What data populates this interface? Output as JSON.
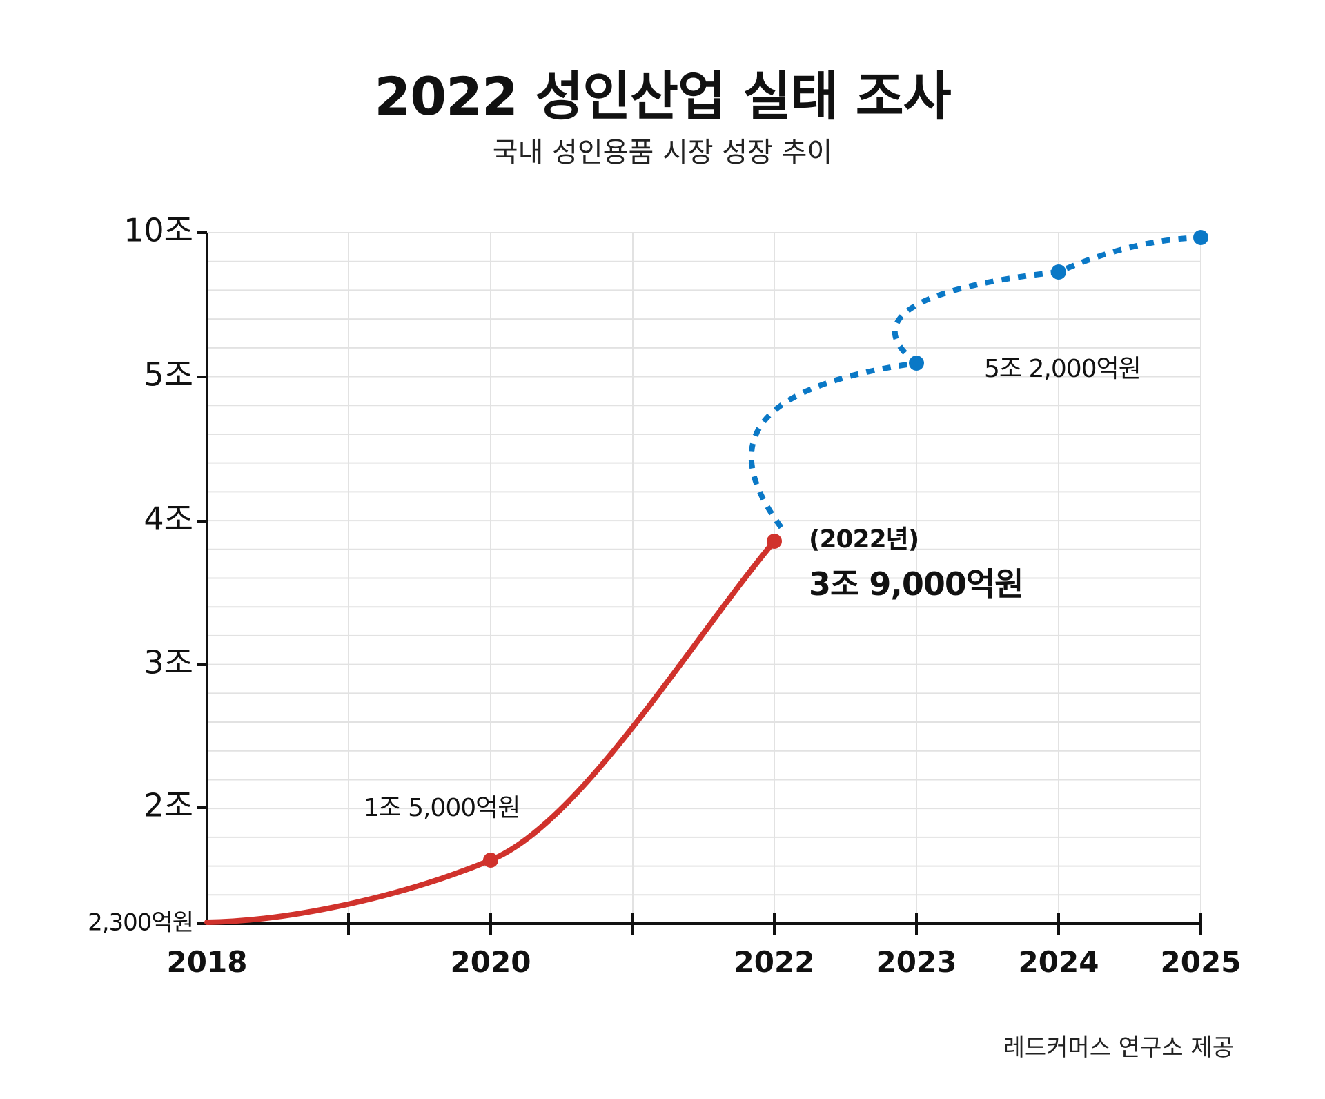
{
  "title": "2022 성인산업 실태 조사",
  "subtitle": "국내 성인용품 시장 성장 추이",
  "source": "레드커머스 연구소 제공",
  "colors": {
    "actual": "#D0322C",
    "projected": "#0A78C6",
    "grid": "#E2E2E2",
    "axis": "#111111"
  },
  "chart_data": {
    "type": "line",
    "title": "2022 성인산업 실태 조사",
    "subtitle": "국내 성인용품 시장 성장 추이",
    "y_tick_labels": [
      "2,300억원",
      "2조",
      "3조",
      "4조",
      "5조",
      "10조"
    ],
    "x_tick_labels": [
      "2018",
      "",
      "2020",
      "",
      "2022",
      "2023",
      "2024",
      "2025"
    ],
    "grid": true,
    "series": [
      {
        "style": "solid",
        "color": "#D0322C",
        "points": [
          {
            "x": "2018",
            "y_label": "2,300억원",
            "marker": false
          },
          {
            "x": "2020",
            "y_label": "1조 5,000억원",
            "marker": true
          },
          {
            "x": "2022",
            "y_label": "3조 9,000억원",
            "marker": true
          }
        ]
      },
      {
        "style": "dotted",
        "color": "#0A78C6",
        "points": [
          {
            "x": "2022",
            "y_label": "3조 9,000억원",
            "marker": false
          },
          {
            "x": "2023",
            "y_label": "5조 2,000억원",
            "marker": true
          },
          {
            "x": "2024",
            "y_label": "",
            "marker": true
          },
          {
            "x": "2025",
            "y_label": "10조",
            "marker": true
          }
        ]
      }
    ],
    "annotations": [
      {
        "text": "1조 5,000억원",
        "x": "2020",
        "bold": false
      },
      {
        "text": "(2022년)",
        "x": "2022",
        "bold": true
      },
      {
        "text": "3조 9,000억원",
        "x": "2022",
        "bold": true
      },
      {
        "text": "5조 2,000억원",
        "x": "2023",
        "bold": false
      }
    ]
  }
}
